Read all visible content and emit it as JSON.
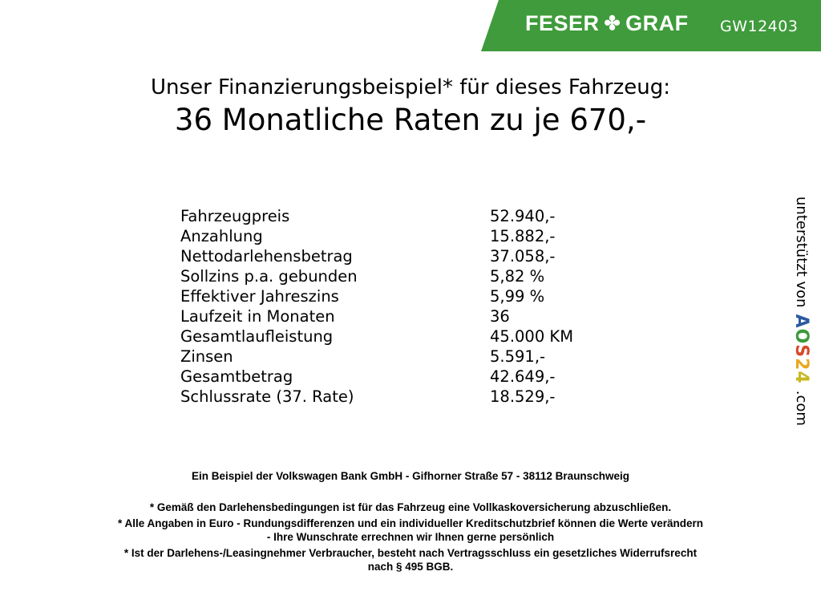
{
  "header": {
    "brand_left": "FESER",
    "brand_right": "GRAF",
    "brand_icon": "clover-icon",
    "vehicle_id": "GW12403",
    "brand_color": "#3f9b3b"
  },
  "title": {
    "line1": "Unser Finanzierungsbeispiel* für dieses Fahrzeug:",
    "line2": "36 Monatliche Raten zu je 670,-"
  },
  "details": [
    {
      "label": "Fahrzeugpreis",
      "value": "52.940,-"
    },
    {
      "label": "Anzahlung",
      "value": "15.882,-"
    },
    {
      "label": "Nettodarlehensbetrag",
      "value": "37.058,-"
    },
    {
      "label": "Sollzins p.a. gebunden",
      "value": "5,82 %"
    },
    {
      "label": "Effektiver Jahreszins",
      "value": "5,99 %"
    },
    {
      "label": "Laufzeit in Monaten",
      "value": "36"
    },
    {
      "label": "Gesamtlaufleistung",
      "value": "45.000 KM"
    },
    {
      "label": "Zinsen",
      "value": "5.591,-"
    },
    {
      "label": "Gesamtbetrag",
      "value": "42.649,-"
    },
    {
      "label": "Schlussrate (37. Rate)",
      "value": "18.529,-"
    }
  ],
  "side": {
    "text": "unterstützt von",
    "logo": "AOS24",
    "suffix": ".com"
  },
  "footer": {
    "bank": "Ein Beispiel der Volkswagen Bank GmbH - Gifhorner Straße 57 - 38112 Braunschweig",
    "note1": "* Gemäß den Darlehensbedingungen ist für das Fahrzeug eine Vollkaskoversicherung abzuschließen.",
    "note2a": "* Alle Angaben in Euro - Rundungsdifferenzen und ein individueller Kreditschutzbrief können die Werte verändern",
    "note2b": "- Ihre Wunschrate errechnen wir Ihnen gerne persönlich",
    "note3a": "* Ist der Darlehens-/Leasingnehmer Verbraucher, besteht nach Vertragsschluss ein gesetzliches Widerrufsrecht",
    "note3b": "nach § 495 BGB."
  }
}
